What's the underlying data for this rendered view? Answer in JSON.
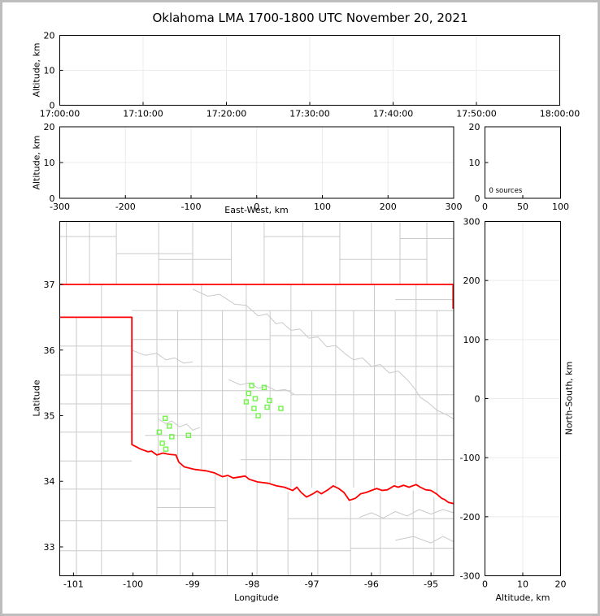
{
  "figure": {
    "title": "Oklahoma LMA 1700-1800 UTC November 20, 2021",
    "background": "#ffffff",
    "outer_border_color": "#bdbdbd"
  },
  "colors": {
    "spine": "#000000",
    "grid": "#ebebeb",
    "county": "#cacaca",
    "state_border": "#ff0000",
    "station": "#70f546",
    "text": "#000000"
  },
  "axis_labels": {
    "altitude_time_panel": "Altitude, km",
    "altitude_ew_panel": "Altitude, km",
    "east_west": "East-West, km",
    "latitude": "Latitude",
    "longitude": "Longitude",
    "north_south": "North-South, km",
    "altitude_bottom": "Altitude, km"
  },
  "chart_data": [
    {
      "id": "time_altitude",
      "type": "scatter",
      "xlabel": "",
      "ylabel": "Altitude, km",
      "xticks": [
        "17:00:00",
        "17:10:00",
        "17:20:00",
        "17:30:00",
        "17:40:00",
        "17:50:00",
        "18:00:00"
      ],
      "yticks": [
        "0",
        "10",
        "20"
      ],
      "ylim": [
        0,
        20
      ],
      "grid": true,
      "points": []
    },
    {
      "id": "eastwest_altitude",
      "type": "scatter",
      "xlabel": "East-West, km",
      "ylabel": "Altitude, km",
      "xticks": [
        "-300",
        "-200",
        "-100",
        "0",
        "100",
        "200",
        "300"
      ],
      "yticks": [
        "0",
        "10",
        "20"
      ],
      "xlim": [
        -300,
        300
      ],
      "ylim": [
        0,
        20
      ],
      "grid": true,
      "points": []
    },
    {
      "id": "altitude_histogram",
      "type": "scatter",
      "annotation": "0 sources",
      "xticks": [
        "0",
        "50",
        "100"
      ],
      "yticks": [
        "0",
        "10",
        "20"
      ],
      "xlim": [
        0,
        100
      ],
      "ylim": [
        0,
        20
      ],
      "grid": false,
      "points": []
    },
    {
      "id": "plan_view_map",
      "type": "scatter",
      "xlabel": "Longitude",
      "ylabel": "Latitude",
      "xticks": [
        "-101",
        "-100",
        "-99",
        "-98",
        "-97",
        "-96",
        "-95"
      ],
      "yticks": [
        "33",
        "34",
        "35",
        "36",
        "37"
      ],
      "xlim": [
        -101.23,
        -94.62
      ],
      "ylim": [
        32.56,
        37.96
      ],
      "grid": false,
      "stations": [
        [
          -98.01,
          35.46
        ],
        [
          -97.8,
          35.43
        ],
        [
          -98.06,
          35.34
        ],
        [
          -97.95,
          35.26
        ],
        [
          -98.1,
          35.21
        ],
        [
          -97.71,
          35.23
        ],
        [
          -97.97,
          35.11
        ],
        [
          -97.75,
          35.13
        ],
        [
          -97.52,
          35.11
        ],
        [
          -97.9,
          35.0
        ],
        [
          -99.46,
          34.96
        ],
        [
          -99.39,
          34.84
        ],
        [
          -99.56,
          34.75
        ],
        [
          -99.07,
          34.7
        ],
        [
          -99.35,
          34.68
        ],
        [
          -99.51,
          34.58
        ],
        [
          -99.45,
          34.49
        ]
      ],
      "state_border_paths": [
        [
          -101.23,
          37.0,
          -94.62,
          37.0
        ],
        [
          -94.63,
          37.0,
          -94.63,
          36.63
        ],
        [
          -101.23,
          36.5,
          -100.02,
          36.5,
          -100.02,
          34.56,
          -100.0,
          34.55,
          -99.87,
          34.49,
          -99.75,
          34.45,
          -99.69,
          34.46,
          -99.6,
          34.4,
          -99.5,
          34.43,
          -99.39,
          34.41,
          -99.28,
          34.4,
          -99.23,
          34.29,
          -99.14,
          34.22,
          -99.05,
          34.2,
          -98.96,
          34.18,
          -98.78,
          34.16,
          -98.64,
          34.13,
          -98.5,
          34.07,
          -98.41,
          34.09,
          -98.32,
          34.05,
          -98.12,
          34.08,
          -98.05,
          34.03,
          -97.91,
          33.99,
          -97.73,
          33.97,
          -97.59,
          33.93,
          -97.46,
          33.91,
          -97.32,
          33.86,
          -97.25,
          33.91,
          -97.18,
          33.83,
          -97.09,
          33.76,
          -96.98,
          33.81,
          -96.91,
          33.85,
          -96.84,
          33.81,
          -96.73,
          33.87,
          -96.64,
          33.93,
          -96.55,
          33.89,
          -96.46,
          33.83,
          -96.37,
          33.71,
          -96.27,
          33.74,
          -96.18,
          33.81,
          -96.09,
          33.83,
          -96.0,
          33.86,
          -95.91,
          33.89,
          -95.82,
          33.86,
          -95.73,
          33.87,
          -95.62,
          33.93,
          -95.55,
          33.91,
          -95.46,
          33.94,
          -95.37,
          33.91,
          -95.25,
          33.95,
          -95.18,
          33.91,
          -95.09,
          33.87,
          -95.0,
          33.86,
          -94.91,
          33.81,
          -94.82,
          33.74,
          -94.77,
          33.72,
          -94.71,
          33.68,
          -94.62,
          33.66
        ]
      ],
      "county_paths": [
        [
          -101.12,
          37,
          -101.12,
          37.96
        ],
        [
          -100.73,
          37,
          -100.73,
          37.96
        ],
        [
          -100.28,
          37,
          -100.28,
          37.96
        ],
        [
          -99.57,
          37,
          -99.57,
          37.96
        ],
        [
          -99.0,
          37,
          -99.0,
          37.96
        ],
        [
          -98.35,
          37,
          -98.35,
          37.96
        ],
        [
          -97.8,
          37,
          -97.8,
          37.96
        ],
        [
          -97.15,
          37,
          -97.15,
          37.96
        ],
        [
          -96.53,
          37,
          -96.53,
          37.96
        ],
        [
          -96.0,
          37,
          -96.0,
          37.96
        ],
        [
          -95.52,
          37,
          -95.52,
          37.96
        ],
        [
          -95.07,
          37,
          -95.07,
          37.96
        ],
        [
          -101.23,
          37.73,
          -100.28,
          37.73
        ],
        [
          -100.28,
          37.47,
          -99.0,
          37.47
        ],
        [
          -99.57,
          37.38,
          -98.35,
          37.38
        ],
        [
          -97.8,
          37.73,
          -96.53,
          37.73
        ],
        [
          -96.53,
          37.38,
          -95.07,
          37.38
        ],
        [
          -95.52,
          37.7,
          -94.62,
          37.7
        ],
        [
          -100.53,
          36.5,
          -100.53,
          37.0
        ],
        [
          -100.95,
          36.5,
          -100.95,
          32.56
        ],
        [
          -100.53,
          36.5,
          -100.53,
          32.56
        ],
        [
          -101.23,
          36.06,
          -100.02,
          36.06
        ],
        [
          -101.23,
          35.62,
          -100.02,
          35.62
        ],
        [
          -101.23,
          35.18,
          -100.02,
          35.18
        ],
        [
          -101.23,
          34.75,
          -100.02,
          34.75
        ],
        [
          -101.23,
          34.31,
          -100.02,
          34.31
        ],
        [
          -101.23,
          33.88,
          -99.21,
          33.88
        ],
        [
          -101.23,
          33.4,
          -98.42,
          33.4
        ],
        [
          -101.23,
          32.94,
          -96.35,
          32.94
        ],
        [
          -99.6,
          34.4,
          -99.6,
          32.56
        ],
        [
          -99.21,
          34.24,
          -99.21,
          32.56
        ],
        [
          -98.62,
          34.1,
          -98.62,
          32.56
        ],
        [
          -98.42,
          34.06,
          -98.42,
          32.56
        ],
        [
          -97.92,
          33.98,
          -97.92,
          32.56
        ],
        [
          -97.4,
          33.84,
          -97.4,
          32.56
        ],
        [
          -96.9,
          33.83,
          -96.9,
          32.56
        ],
        [
          -96.35,
          33.68,
          -96.35,
          32.56
        ],
        [
          -95.85,
          33.83,
          -95.85,
          32.56
        ],
        [
          -95.3,
          33.86,
          -95.3,
          32.56
        ],
        [
          -94.95,
          33.76,
          -94.95,
          32.56
        ],
        [
          -99.6,
          33.6,
          -98.62,
          33.6
        ],
        [
          -97.4,
          33.43,
          -94.62,
          33.43
        ],
        [
          -96.35,
          32.98,
          -94.62,
          32.98
        ],
        [
          -99.6,
          37.0,
          -99.6,
          35.75
        ],
        [
          -99.58,
          35.75,
          -99.58,
          34.42
        ],
        [
          -99.25,
          36.6,
          -99.25,
          34.3
        ],
        [
          -98.85,
          37.0,
          -98.85,
          34.18
        ],
        [
          -98.5,
          36.6,
          -98.5,
          34.09
        ],
        [
          -98.1,
          37.0,
          -98.1,
          34.06
        ],
        [
          -97.7,
          36.6,
          -97.7,
          33.97
        ],
        [
          -97.35,
          37.0,
          -97.35,
          33.9
        ],
        [
          -97.0,
          36.6,
          -97.0,
          33.9
        ],
        [
          -96.6,
          37.0,
          -96.6,
          33.93
        ],
        [
          -96.3,
          36.6,
          -96.3,
          33.9
        ],
        [
          -95.95,
          37.0,
          -95.95,
          33.88
        ],
        [
          -95.6,
          36.6,
          -95.6,
          33.93
        ],
        [
          -95.25,
          37.0,
          -95.25,
          33.94
        ],
        [
          -94.9,
          36.6,
          -94.9,
          33.8
        ],
        [
          -100.02,
          36.6,
          -94.62,
          36.6
        ],
        [
          -95.6,
          36.77,
          -94.62,
          36.77
        ],
        [
          -100.02,
          36.16,
          -97.7,
          36.16
        ],
        [
          -97.7,
          36.22,
          -94.62,
          36.22
        ],
        [
          -100.02,
          35.75,
          -94.62,
          35.75
        ],
        [
          -100.02,
          35.38,
          -97.35,
          35.38
        ],
        [
          -97.35,
          35.32,
          -94.62,
          35.32
        ],
        [
          -100.02,
          35.03,
          -94.62,
          35.03
        ],
        [
          -99.8,
          34.7,
          -94.62,
          34.7
        ],
        [
          -98.2,
          34.33,
          -94.62,
          34.33
        ],
        [
          -99.0,
          36.93,
          -98.75,
          36.82,
          -98.55,
          36.85,
          -98.3,
          36.7,
          -98.1,
          36.68,
          -97.9,
          36.52,
          -97.75,
          36.55,
          -97.6,
          36.4,
          -97.5,
          36.42,
          -97.35,
          36.3,
          -97.2,
          36.32,
          -97.05,
          36.18,
          -96.9,
          36.2,
          -96.75,
          36.05,
          -96.6,
          36.07,
          -96.45,
          35.95
        ],
        [
          -100.02,
          36.0,
          -99.8,
          35.92,
          -99.6,
          35.95,
          -99.45,
          35.85,
          -99.3,
          35.88,
          -99.15,
          35.8,
          -99.0,
          35.82
        ],
        [
          -99.58,
          34.95,
          -99.45,
          34.88,
          -99.35,
          34.92,
          -99.22,
          34.83,
          -99.1,
          34.87,
          -99.0,
          34.78,
          -98.88,
          34.82
        ],
        [
          -96.45,
          35.95,
          -96.3,
          35.85,
          -96.15,
          35.88,
          -96.0,
          35.75,
          -95.85,
          35.78,
          -95.7,
          35.65,
          -95.55,
          35.68,
          -95.4,
          35.55,
          -95.28,
          35.42,
          -95.18,
          35.28,
          -95.05,
          35.2,
          -94.9,
          35.08,
          -94.75,
          35.02,
          -94.62,
          34.95
        ],
        [
          -96.2,
          33.45,
          -96.0,
          33.52,
          -95.8,
          33.44,
          -95.6,
          33.54,
          -95.4,
          33.47,
          -95.2,
          33.57,
          -95.0,
          33.5,
          -94.8,
          33.57,
          -94.62,
          33.52
        ],
        [
          -95.6,
          33.1,
          -95.3,
          33.16,
          -95.0,
          33.06,
          -94.8,
          33.16,
          -94.62,
          33.08
        ],
        [
          -98.4,
          35.55,
          -98.2,
          35.47,
          -98.05,
          35.5,
          -97.9,
          35.42,
          -97.75,
          35.45,
          -97.6,
          35.38,
          -97.45,
          35.4,
          -97.3,
          35.33
        ]
      ]
    },
    {
      "id": "northsouth_altitude",
      "type": "scatter",
      "xlabel": "Altitude, km",
      "ylabel": "North-South, km",
      "xticks": [
        "0",
        "10",
        "20"
      ],
      "yticks": [
        "300",
        "200",
        "100",
        "0",
        "-100",
        "-200",
        "-300"
      ],
      "xlim": [
        0,
        20
      ],
      "ylim": [
        -300,
        300
      ],
      "grid": true,
      "points": []
    }
  ]
}
